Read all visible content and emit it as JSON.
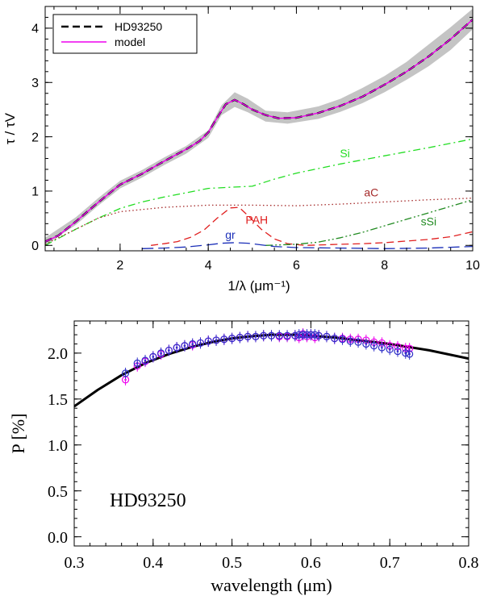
{
  "chart_data": [
    {
      "type": "line",
      "xlabel": "1/λ (μm⁻¹)",
      "ylabel": "τ / τV",
      "xlim": [
        0.3,
        10
      ],
      "ylim": [
        -0.1,
        4.4
      ],
      "xticks": [
        2,
        4,
        6,
        8,
        10
      ],
      "yticks": [
        0,
        1,
        2,
        3,
        4
      ],
      "legend": {
        "placement": "top-left",
        "entries": [
          "HD93250",
          "model"
        ]
      },
      "band": {
        "color": "#c4c4c4",
        "x": [
          0.3,
          1,
          1.5,
          2,
          2.5,
          3,
          3.5,
          4,
          4.3,
          4.6,
          4.9,
          5.3,
          5.8,
          6.5,
          7,
          7.5,
          8,
          8.5,
          9,
          9.5,
          10
        ],
        "lower": [
          0.0,
          0.38,
          0.73,
          1.05,
          1.25,
          1.48,
          1.69,
          1.98,
          2.4,
          2.55,
          2.45,
          2.28,
          2.24,
          2.33,
          2.46,
          2.62,
          2.82,
          3.05,
          3.3,
          3.6,
          3.98
        ],
        "upper": [
          0.14,
          0.52,
          0.87,
          1.19,
          1.39,
          1.62,
          1.83,
          2.12,
          2.58,
          2.82,
          2.7,
          2.48,
          2.45,
          2.56,
          2.7,
          2.9,
          3.12,
          3.38,
          3.7,
          4.02,
          4.36
        ]
      },
      "series": [
        {
          "name": "HD93250",
          "color": "#000000",
          "style": "dashed",
          "width": 2.4,
          "x": [
            0.3,
            0.6,
            1,
            1.5,
            2,
            2.5,
            3,
            3.5,
            3.8,
            4,
            4.2,
            4.4,
            4.6,
            4.8,
            5,
            5.3,
            5.6,
            6,
            6.5,
            7,
            7.5,
            8,
            8.5,
            9,
            9.5,
            10
          ],
          "y": [
            0.07,
            0.18,
            0.44,
            0.79,
            1.12,
            1.32,
            1.55,
            1.77,
            1.92,
            2.08,
            2.35,
            2.6,
            2.68,
            2.6,
            2.5,
            2.4,
            2.34,
            2.35,
            2.44,
            2.57,
            2.74,
            2.96,
            3.2,
            3.48,
            3.8,
            4.16
          ]
        },
        {
          "name": "model",
          "color": "#ee00ee",
          "style": "solid",
          "width": 1.4,
          "x": [
            0.3,
            0.6,
            1,
            1.5,
            2,
            2.5,
            3,
            3.5,
            3.8,
            4,
            4.2,
            4.4,
            4.6,
            4.8,
            5,
            5.3,
            5.6,
            6,
            6.5,
            7,
            7.5,
            8,
            8.5,
            9,
            9.5,
            10
          ],
          "y": [
            0.07,
            0.18,
            0.44,
            0.79,
            1.12,
            1.32,
            1.55,
            1.77,
            1.92,
            2.08,
            2.35,
            2.6,
            2.68,
            2.6,
            2.5,
            2.4,
            2.34,
            2.35,
            2.44,
            2.57,
            2.74,
            2.96,
            3.2,
            3.48,
            3.8,
            4.16
          ]
        },
        {
          "name": "Si",
          "color": "#22dd22",
          "style": "dashdot",
          "width": 1.3,
          "label_at": [
            7.1,
            1.62
          ],
          "x": [
            0.3,
            1,
            1.5,
            2,
            2.5,
            3,
            3.5,
            4,
            4.5,
            5,
            5.5,
            6,
            7,
            8,
            9,
            10
          ],
          "y": [
            0.0,
            0.3,
            0.5,
            0.68,
            0.8,
            0.89,
            0.97,
            1.05,
            1.07,
            1.09,
            1.22,
            1.33,
            1.5,
            1.65,
            1.8,
            1.96
          ]
        },
        {
          "name": "aC",
          "color": "#a52a2a",
          "style": "dotted",
          "width": 1.3,
          "label_at": [
            7.7,
            0.9
          ],
          "x": [
            0.3,
            1,
            1.5,
            2,
            3,
            4,
            5,
            6,
            7,
            8,
            9,
            10
          ],
          "y": [
            0.02,
            0.3,
            0.5,
            0.62,
            0.7,
            0.74,
            0.74,
            0.73,
            0.76,
            0.8,
            0.84,
            0.87
          ]
        },
        {
          "name": "PAH",
          "color": "#e02020",
          "style": "dashed",
          "width": 1.3,
          "label_at": [
            5.1,
            0.4
          ],
          "x": [
            2.7,
            3,
            3.3,
            3.6,
            3.9,
            4.2,
            4.5,
            4.7,
            4.9,
            5.2,
            5.5,
            5.8,
            6.2,
            6.6,
            7,
            7.5,
            8,
            8.5,
            9,
            9.5,
            10
          ],
          "y": [
            0.0,
            0.03,
            0.07,
            0.15,
            0.28,
            0.5,
            0.69,
            0.7,
            0.55,
            0.3,
            0.12,
            0.03,
            0.0,
            0.01,
            0.02,
            0.03,
            0.05,
            0.08,
            0.11,
            0.16,
            0.25
          ]
        },
        {
          "name": "sSi",
          "color": "#228b22",
          "style": "dashdotdot",
          "width": 1.3,
          "label_at": [
            9.0,
            0.37
          ],
          "x": [
            5.3,
            6,
            6.5,
            7,
            7.5,
            8,
            8.5,
            9,
            9.5,
            10
          ],
          "y": [
            0.0,
            0.02,
            0.06,
            0.14,
            0.24,
            0.36,
            0.48,
            0.6,
            0.72,
            0.84
          ]
        },
        {
          "name": "gr",
          "color": "#1a2eb8",
          "style": "longdash",
          "width": 1.3,
          "label_at": [
            4.5,
            0.12
          ],
          "x": [
            2.5,
            3,
            3.5,
            4,
            4.3,
            4.6,
            4.9,
            5.2,
            5.5,
            6,
            7,
            8,
            9,
            10
          ],
          "y": [
            -0.06,
            -0.05,
            -0.03,
            0.01,
            0.04,
            0.05,
            0.04,
            0.01,
            -0.02,
            -0.04,
            -0.05,
            -0.06,
            -0.05,
            -0.02
          ]
        }
      ]
    },
    {
      "type": "scatter",
      "xlabel": "wavelength (μm)",
      "ylabel": "P [%]",
      "xlim": [
        0.3,
        0.8
      ],
      "ylim": [
        -0.1,
        2.35
      ],
      "xticks": [
        0.3,
        0.4,
        0.5,
        0.6,
        0.7,
        0.8
      ],
      "yticks": [
        0.0,
        0.5,
        1.0,
        1.5,
        2.0
      ],
      "annotation": "HD93250",
      "series": [
        {
          "name": "fit",
          "type": "line",
          "color": "#000000",
          "width": 3,
          "x": [
            0.3,
            0.33,
            0.36,
            0.39,
            0.42,
            0.45,
            0.48,
            0.5,
            0.52,
            0.55,
            0.58,
            0.6,
            0.63,
            0.66,
            0.7,
            0.75,
            0.8
          ],
          "y": [
            1.42,
            1.6,
            1.76,
            1.89,
            1.99,
            2.07,
            2.13,
            2.16,
            2.18,
            2.2,
            2.2,
            2.19,
            2.17,
            2.14,
            2.1,
            2.03,
            1.94
          ]
        },
        {
          "name": "magenta",
          "type": "scatter",
          "color": "#ee00ee",
          "x": [
            0.365,
            0.38,
            0.39,
            0.4,
            0.41,
            0.42,
            0.43,
            0.44,
            0.45,
            0.46,
            0.47,
            0.48,
            0.49,
            0.5,
            0.51,
            0.52,
            0.53,
            0.54,
            0.55,
            0.56,
            0.57,
            0.58,
            0.585,
            0.59,
            0.595,
            0.6,
            0.605,
            0.61,
            0.62,
            0.63,
            0.64,
            0.65,
            0.66,
            0.67,
            0.68,
            0.69,
            0.7,
            0.71,
            0.72,
            0.725
          ],
          "y": [
            1.71,
            1.86,
            1.91,
            1.96,
            1.99,
            2.03,
            2.06,
            2.08,
            2.09,
            2.11,
            2.13,
            2.14,
            2.15,
            2.16,
            2.17,
            2.18,
            2.18,
            2.19,
            2.19,
            2.18,
            2.18,
            2.19,
            2.17,
            2.21,
            2.18,
            2.2,
            2.17,
            2.19,
            2.18,
            2.16,
            2.16,
            2.15,
            2.15,
            2.14,
            2.12,
            2.11,
            2.08,
            2.07,
            2.05,
            2.05
          ]
        },
        {
          "name": "blue",
          "type": "scatter",
          "color": "#3030c8",
          "x": [
            0.365,
            0.38,
            0.39,
            0.4,
            0.41,
            0.42,
            0.43,
            0.44,
            0.45,
            0.46,
            0.47,
            0.48,
            0.49,
            0.5,
            0.51,
            0.52,
            0.53,
            0.54,
            0.55,
            0.56,
            0.57,
            0.58,
            0.585,
            0.59,
            0.595,
            0.6,
            0.605,
            0.61,
            0.62,
            0.63,
            0.64,
            0.65,
            0.66,
            0.67,
            0.68,
            0.69,
            0.7,
            0.71,
            0.72,
            0.725
          ],
          "y": [
            1.78,
            1.89,
            1.92,
            1.96,
            2.0,
            2.03,
            2.06,
            2.08,
            2.1,
            2.11,
            2.13,
            2.14,
            2.15,
            2.16,
            2.17,
            2.18,
            2.18,
            2.19,
            2.19,
            2.19,
            2.19,
            2.19,
            2.2,
            2.2,
            2.2,
            2.2,
            2.2,
            2.19,
            2.18,
            2.16,
            2.15,
            2.13,
            2.12,
            2.1,
            2.08,
            2.06,
            2.04,
            2.02,
            2.0,
            1.99
          ]
        }
      ]
    }
  ]
}
